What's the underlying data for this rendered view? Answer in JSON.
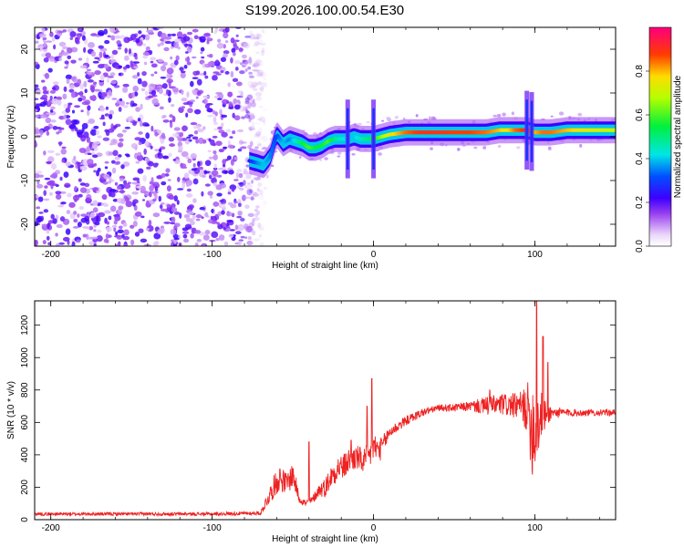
{
  "title": "S199.2026.100.00.54.E30",
  "chart_data": [
    {
      "type": "heatmap",
      "name": "spectrogram",
      "xlabel": "Height of straight line (km)",
      "ylabel": "Frequency (Hz)",
      "xlim": [
        -210,
        150
      ],
      "ylim": [
        -25,
        25
      ],
      "xticks": [
        -200,
        -100,
        0,
        100
      ],
      "yticks": [
        -20,
        -10,
        0,
        10,
        20
      ],
      "colorbar": {
        "label": "Normalized spectral amplitude",
        "range": [
          0,
          1
        ],
        "ticks": [
          "0.0",
          "0.2",
          "0.4",
          "0.6",
          "0.8"
        ],
        "tick_values": [
          0,
          0.2,
          0.4,
          0.6,
          0.8
        ]
      },
      "noise_region_end_km": -75,
      "ridge": {
        "x": [
          -77,
          -72,
          -68,
          -64,
          -60,
          -56,
          -52,
          -48,
          -44,
          -40,
          -36,
          -32,
          -28,
          -24,
          -20,
          -16,
          -12,
          -8,
          -4,
          0,
          5,
          10,
          20,
          30,
          40,
          50,
          60,
          70,
          78,
          82,
          88,
          95,
          100,
          105,
          110,
          120,
          130,
          140,
          150
        ],
        "freq": [
          -5.5,
          -6.0,
          -6.5,
          -4.5,
          0.5,
          -1.5,
          -0.5,
          -1.0,
          -1.5,
          -2.5,
          -2.5,
          -2.0,
          -1.0,
          -0.5,
          -0.5,
          -0.5,
          0.0,
          -0.5,
          -0.5,
          -0.5,
          0.0,
          0.5,
          1.0,
          1.0,
          1.0,
          1.0,
          1.0,
          1.0,
          1.5,
          1.5,
          1.5,
          1.5,
          1.0,
          1.0,
          1.0,
          1.5,
          1.5,
          1.5,
          1.5
        ],
        "amp": [
          0.25,
          0.35,
          0.4,
          0.35,
          0.3,
          0.4,
          0.35,
          0.45,
          0.55,
          0.6,
          0.55,
          0.55,
          0.6,
          0.5,
          0.45,
          0.4,
          0.4,
          0.45,
          0.5,
          0.55,
          0.65,
          0.75,
          0.85,
          0.9,
          0.9,
          0.88,
          0.88,
          0.85,
          0.8,
          0.75,
          0.85,
          0.9,
          0.8,
          0.85,
          0.85,
          0.8,
          0.75,
          0.72,
          0.7
        ]
      },
      "spikes_km": [
        -16,
        0,
        95,
        98
      ]
    },
    {
      "type": "line",
      "name": "snr",
      "xlabel": "Height of straight line (km)",
      "ylabel": "SNR (10 * v/v)",
      "xlim": [
        -210,
        150
      ],
      "ylim": [
        0,
        1350
      ],
      "xticks": [
        -200,
        -100,
        0,
        100
      ],
      "yticks": [
        0,
        200,
        400,
        600,
        800,
        1000,
        1200
      ],
      "color": "#ee2222",
      "envelope": {
        "x": [
          -210,
          -150,
          -100,
          -70,
          -62,
          -58,
          -54,
          -50,
          -46,
          -42,
          -38,
          -34,
          -30,
          -26,
          -22,
          -18,
          -14,
          -10,
          -6,
          -2,
          0,
          4,
          10,
          20,
          30,
          40,
          50,
          60,
          70,
          80,
          90,
          95,
          99,
          101,
          105,
          110,
          120,
          130,
          140,
          150
        ],
        "mean": [
          35,
          35,
          35,
          40,
          200,
          260,
          220,
          280,
          130,
          100,
          120,
          180,
          200,
          270,
          320,
          330,
          380,
          380,
          360,
          400,
          450,
          430,
          540,
          610,
          660,
          690,
          690,
          700,
          700,
          710,
          700,
          690,
          560,
          600,
          640,
          660,
          660,
          660,
          660,
          660
        ],
        "noise": [
          10,
          10,
          10,
          12,
          70,
          80,
          70,
          80,
          30,
          20,
          25,
          40,
          60,
          70,
          80,
          80,
          80,
          80,
          80,
          80,
          90,
          70,
          40,
          30,
          25,
          20,
          25,
          30,
          60,
          70,
          80,
          150,
          350,
          300,
          120,
          40,
          25,
          20,
          20,
          20
        ]
      },
      "peaks": [
        {
          "x": -40,
          "y": 480
        },
        {
          "x": -14,
          "y": 490
        },
        {
          "x": -4,
          "y": 700
        },
        {
          "x": -1,
          "y": 870
        },
        {
          "x": 72,
          "y": 800
        },
        {
          "x": 101,
          "y": 1350
        },
        {
          "x": 105,
          "y": 1130
        },
        {
          "x": 108,
          "y": 970
        }
      ]
    }
  ]
}
